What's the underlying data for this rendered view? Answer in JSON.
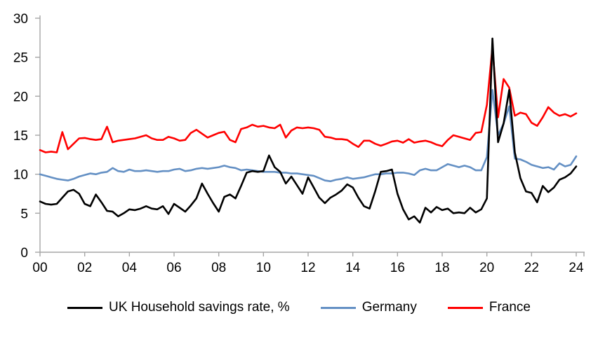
{
  "chart_data": {
    "type": "line",
    "title": "",
    "xlabel": "",
    "ylabel": "",
    "x_unit": "year (quarterly points)",
    "x_start": 2000,
    "x_step": 0.25,
    "xlim": [
      2000,
      2024.25
    ],
    "ylim": [
      0,
      30
    ],
    "y_ticks": [
      0,
      5,
      10,
      15,
      20,
      25,
      30
    ],
    "x_tick_labels": [
      "00",
      "02",
      "04",
      "06",
      "08",
      "10",
      "12",
      "14",
      "16",
      "18",
      "20",
      "22",
      "24"
    ],
    "grid": false,
    "legend_position": "bottom",
    "axis_color": "#a6a6a6",
    "series": [
      {
        "name": "UK Household savings rate, %",
        "color": "#000000",
        "values": [
          6.5,
          6.2,
          6.1,
          6.2,
          7.0,
          7.8,
          8.0,
          7.5,
          6.2,
          5.9,
          7.4,
          6.4,
          5.3,
          5.2,
          4.6,
          5.0,
          5.5,
          5.4,
          5.6,
          5.9,
          5.6,
          5.5,
          5.9,
          4.9,
          6.2,
          5.7,
          5.2,
          6.0,
          6.9,
          8.8,
          7.5,
          6.3,
          5.2,
          7.1,
          7.4,
          6.9,
          8.5,
          10.2,
          10.4,
          10.3,
          10.4,
          12.4,
          10.9,
          10.3,
          8.8,
          9.7,
          8.6,
          7.5,
          9.6,
          8.3,
          7.0,
          6.3,
          7.0,
          7.4,
          7.9,
          8.7,
          8.3,
          7.0,
          5.9,
          5.6,
          7.8,
          10.3,
          10.4,
          10.6,
          7.5,
          5.5,
          4.2,
          4.6,
          3.8,
          5.7,
          5.1,
          5.8,
          5.4,
          5.6,
          5.0,
          5.1,
          5.0,
          5.7,
          5.1,
          5.5,
          6.9,
          27.4,
          14.1,
          16.5,
          20.8,
          12.8,
          9.5,
          7.8,
          7.6,
          6.4,
          8.5,
          7.7,
          8.3,
          9.3,
          9.6,
          10.1,
          11.0
        ]
      },
      {
        "name": "Germany",
        "color": "#6490c4",
        "values": [
          10.0,
          9.8,
          9.6,
          9.4,
          9.3,
          9.2,
          9.4,
          9.7,
          9.9,
          10.1,
          10.0,
          10.2,
          10.3,
          10.8,
          10.4,
          10.3,
          10.6,
          10.4,
          10.4,
          10.5,
          10.4,
          10.3,
          10.4,
          10.4,
          10.6,
          10.7,
          10.4,
          10.5,
          10.7,
          10.8,
          10.7,
          10.8,
          10.9,
          11.1,
          10.9,
          10.8,
          10.5,
          10.6,
          10.5,
          10.4,
          10.3,
          10.3,
          10.3,
          10.2,
          10.2,
          10.1,
          10.1,
          10.0,
          9.9,
          9.8,
          9.5,
          9.2,
          9.1,
          9.3,
          9.4,
          9.6,
          9.4,
          9.5,
          9.6,
          9.8,
          10.0,
          10.0,
          10.1,
          10.1,
          10.2,
          10.2,
          10.1,
          9.9,
          10.5,
          10.7,
          10.5,
          10.5,
          10.9,
          11.3,
          11.1,
          10.9,
          11.1,
          10.9,
          10.5,
          10.5,
          12.2,
          20.8,
          15.0,
          16.5,
          18.7,
          12.0,
          11.9,
          11.6,
          11.2,
          11.0,
          10.8,
          10.9,
          10.6,
          11.4,
          11.0,
          11.2,
          12.3
        ]
      },
      {
        "name": "France",
        "color": "#ff0000",
        "values": [
          13.1,
          12.8,
          12.9,
          12.8,
          15.4,
          13.2,
          13.9,
          14.6,
          14.65,
          14.5,
          14.4,
          14.5,
          16.1,
          14.1,
          14.3,
          14.4,
          14.5,
          14.6,
          14.8,
          15.0,
          14.6,
          14.4,
          14.4,
          14.8,
          14.6,
          14.3,
          14.4,
          15.3,
          15.7,
          15.2,
          14.7,
          15.0,
          15.3,
          15.45,
          14.4,
          14.1,
          15.8,
          16.0,
          16.35,
          16.1,
          16.2,
          16.0,
          15.9,
          16.35,
          14.7,
          15.6,
          16.0,
          15.9,
          16.0,
          15.9,
          15.7,
          14.8,
          14.7,
          14.5,
          14.5,
          14.4,
          13.9,
          13.5,
          14.3,
          14.3,
          13.9,
          13.65,
          13.9,
          14.2,
          14.3,
          14.05,
          14.5,
          14.05,
          14.2,
          14.3,
          14.1,
          13.8,
          13.6,
          14.4,
          15.0,
          14.8,
          14.6,
          14.4,
          15.3,
          15.4,
          18.9,
          26.3,
          17.3,
          22.2,
          21.1,
          17.5,
          17.9,
          17.7,
          16.6,
          16.2,
          17.3,
          18.6,
          17.9,
          17.5,
          17.7,
          17.4,
          17.8
        ]
      }
    ]
  }
}
